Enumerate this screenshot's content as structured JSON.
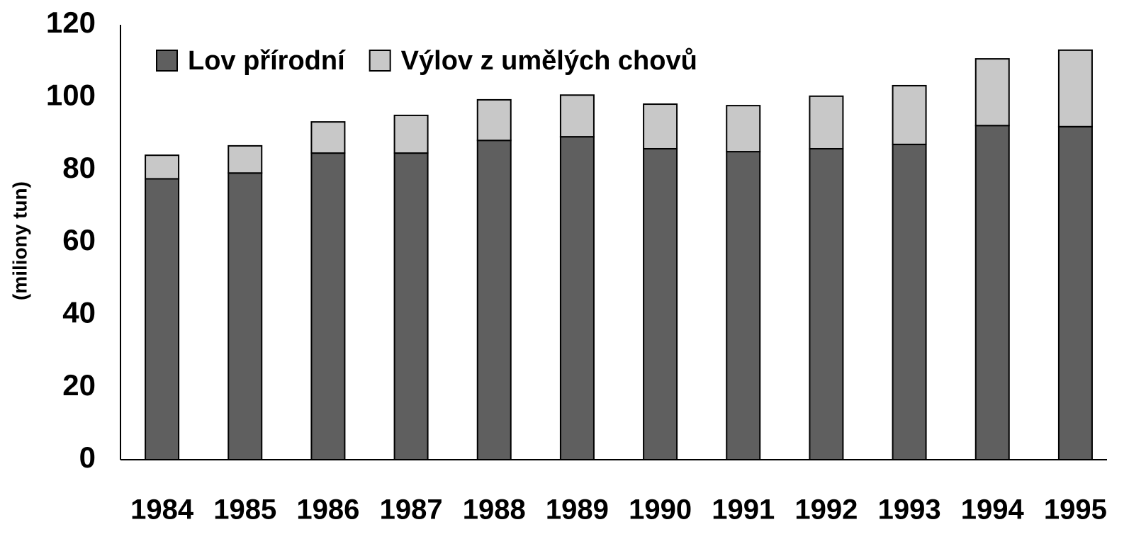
{
  "chart_data": {
    "type": "stacked_bar",
    "ylabel": "(miliony tun)",
    "categories": [
      "1984",
      "1985",
      "1986",
      "1987",
      "1988",
      "1989",
      "1990",
      "1991",
      "1992",
      "1993",
      "1994",
      "1995"
    ],
    "series": [
      {
        "name": "Lov přírodní",
        "color": "#5f5f5f",
        "values": [
          77.5,
          79.1,
          84.6,
          84.6,
          88.1,
          89.1,
          85.8,
          85.0,
          85.8,
          87.0,
          92.2,
          91.9
        ]
      },
      {
        "name": "Výlov z umělých chovů",
        "color": "#c8c8c8",
        "values": [
          6.5,
          7.5,
          8.6,
          10.4,
          11.2,
          11.5,
          12.3,
          12.7,
          14.5,
          16.2,
          18.4,
          21.1
        ]
      }
    ],
    "ylim": [
      0,
      120
    ],
    "yticks": [
      0,
      20,
      40,
      60,
      80,
      100,
      120
    ],
    "grid": false,
    "legend": "top-left"
  }
}
